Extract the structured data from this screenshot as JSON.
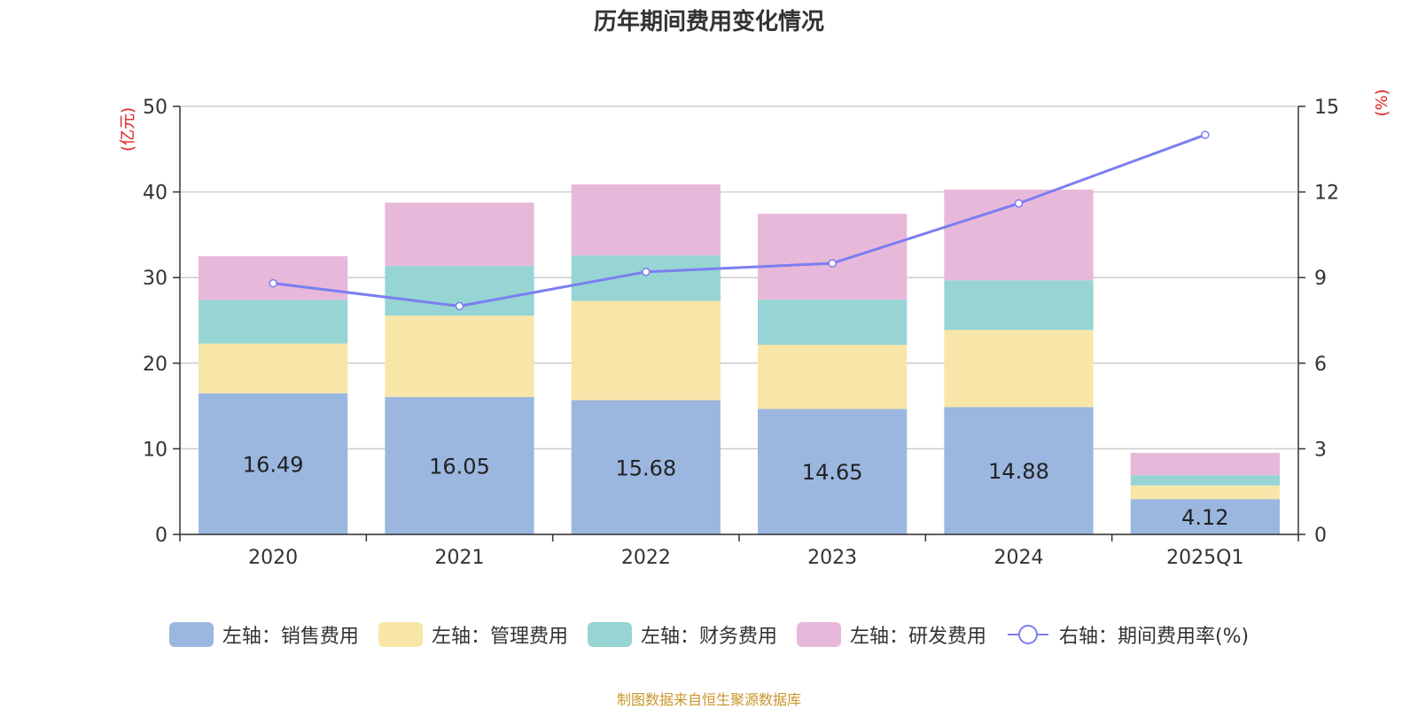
{
  "chart_data": {
    "type": "bar",
    "title": "历年期间费用变化情况",
    "categories": [
      "2020",
      "2021",
      "2022",
      "2023",
      "2024",
      "2025Q1"
    ],
    "left_axis": {
      "unit_label": "(亿元)",
      "ylim": [
        0,
        50
      ],
      "ticks": [
        0,
        10,
        20,
        30,
        40,
        50
      ]
    },
    "right_axis": {
      "unit_label": "(%)",
      "ylim": [
        0,
        15
      ],
      "ticks": [
        0,
        3,
        6,
        9,
        12,
        15
      ]
    },
    "series": [
      {
        "name": "左轴：销售费用",
        "kind": "bar",
        "axis": "left",
        "color": "#9bb7e0",
        "values": [
          16.49,
          16.05,
          15.68,
          14.65,
          14.88,
          4.12
        ],
        "show_labels": true
      },
      {
        "name": "左轴：管理费用",
        "kind": "bar",
        "axis": "left",
        "color": "#f8e6a8",
        "values": [
          5.8,
          9.5,
          11.6,
          7.5,
          9.0,
          1.6
        ],
        "show_labels": false
      },
      {
        "name": "左轴：财务费用",
        "kind": "bar",
        "axis": "left",
        "color": "#97d4d4",
        "values": [
          5.1,
          5.8,
          5.3,
          5.3,
          5.8,
          1.2
        ],
        "show_labels": false
      },
      {
        "name": "左轴：研发费用",
        "kind": "bar",
        "axis": "left",
        "color": "#e8b8da",
        "values": [
          5.1,
          7.4,
          8.3,
          10.0,
          10.6,
          2.6
        ],
        "show_labels": false
      },
      {
        "name": "右轴：期间费用率(%)",
        "kind": "line",
        "axis": "right",
        "color": "#7b7ef0",
        "values": [
          8.8,
          8.0,
          9.2,
          9.5,
          11.6,
          14.0
        ],
        "show_labels": false
      }
    ],
    "grid": true,
    "legend_position": "bottom"
  },
  "footer": {
    "source": "制图数据来自恒生聚源数据库"
  }
}
